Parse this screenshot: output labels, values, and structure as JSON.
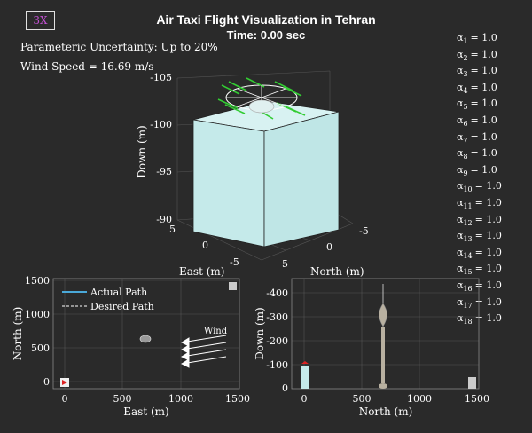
{
  "speed_button": "3X",
  "title": "Air Taxi Flight Visualization in Tehran",
  "time_label": "Time: 0.00 sec",
  "uncertainty_label": "Parameteric Uncertainty: Up to 20%",
  "wind_speed_label": "Wind Speed = 16.69 m/s",
  "alphas": [
    {
      "sym": "α",
      "sub": "1",
      "val": "= 1.0"
    },
    {
      "sym": "α",
      "sub": "2",
      "val": "= 1.0"
    },
    {
      "sym": "α",
      "sub": "3",
      "val": "= 1.0"
    },
    {
      "sym": "α",
      "sub": "4",
      "val": "= 1.0"
    },
    {
      "sym": "α",
      "sub": "5",
      "val": "= 1.0"
    },
    {
      "sym": "α",
      "sub": "6",
      "val": "= 1.0"
    },
    {
      "sym": "α",
      "sub": "7",
      "val": "= 1.0"
    },
    {
      "sym": "α",
      "sub": "8",
      "val": "= 1.0"
    },
    {
      "sym": "α",
      "sub": "9",
      "val": "= 1.0"
    },
    {
      "sym": "α",
      "sub": "10",
      "val": "= 1.0"
    },
    {
      "sym": "α",
      "sub": "11",
      "val": "= 1.0"
    },
    {
      "sym": "α",
      "sub": "12",
      "val": "= 1.0"
    },
    {
      "sym": "α",
      "sub": "13",
      "val": "= 1.0"
    },
    {
      "sym": "α",
      "sub": "14",
      "val": "= 1.0"
    },
    {
      "sym": "α",
      "sub": "15",
      "val": "= 1.0"
    },
    {
      "sym": "α",
      "sub": "16",
      "val": "= 1.0"
    },
    {
      "sym": "α",
      "sub": "17",
      "val": "= 1.0"
    },
    {
      "sym": "α",
      "sub": "18",
      "val": "= 1.0"
    }
  ],
  "plot3d": {
    "zlabel": "Down (m)",
    "xlabel": "East (m)",
    "ylabel": "North (m)",
    "zticks": [
      "-105",
      "-100",
      "-95",
      "-90"
    ],
    "east_ticks": [
      "5",
      "0",
      "-5"
    ],
    "north_ticks": [
      "0",
      "-5",
      "5"
    ]
  },
  "plot_topdown": {
    "xlabel": "East (m)",
    "ylabel": "North (m)",
    "xticks": [
      "0",
      "500",
      "1000",
      "1500"
    ],
    "yticks": [
      "1500",
      "1000",
      "500",
      "0"
    ],
    "legend_actual": "Actual Path",
    "legend_desired": "Desired Path",
    "wind_label": "Wind"
  },
  "plot_side": {
    "xlabel": "North (m)",
    "ylabel": "Down (m)",
    "xticks": [
      "0",
      "500",
      "1000",
      "1500"
    ],
    "yticks": [
      "-400",
      "-300",
      "-200",
      "-100",
      "0"
    ]
  },
  "colors": {
    "background": "#2a2a2a",
    "cube": "#c5eaea",
    "actual_path": "#4aa8d8",
    "rotor": "#33cc33",
    "marker_red": "#dd2222",
    "speed_button_text": "#c050d0"
  },
  "icons": [
    "play-marker-icon",
    "wind-arrow-icon",
    "drone-icon"
  ]
}
